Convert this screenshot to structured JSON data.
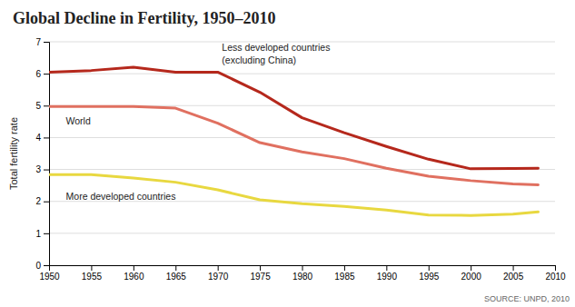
{
  "chart_data": {
    "type": "line",
    "title": "Global Decline in Fertility, 1950–2010",
    "ylabel": "Total fertility rate",
    "source": "SOURCE: UNPD, 2010",
    "x": [
      1950,
      1955,
      1960,
      1965,
      1970,
      1975,
      1980,
      1985,
      1990,
      1995,
      2000,
      2005,
      2008
    ],
    "series": [
      {
        "color": "#b5281c",
        "values": [
          6.05,
          6.1,
          6.2,
          6.05,
          6.05,
          5.42,
          4.62,
          4.15,
          3.72,
          3.32,
          3.02,
          3.03,
          3.04
        ]
      },
      {
        "color": "#e07060",
        "values": [
          4.97,
          4.97,
          4.97,
          4.92,
          4.45,
          3.84,
          3.55,
          3.34,
          3.04,
          2.79,
          2.65,
          2.55,
          2.52
        ]
      },
      {
        "color": "#e8d840",
        "values": [
          2.84,
          2.84,
          2.73,
          2.6,
          2.36,
          2.05,
          1.93,
          1.84,
          1.73,
          1.57,
          1.56,
          1.6,
          1.67
        ]
      }
    ],
    "annotations": [
      {
        "text": "Less developed countries\n(excluding China)",
        "x": 1970.5,
        "y": 6.62
      },
      {
        "text": "World",
        "x": 1952.0,
        "y": 4.52
      },
      {
        "text": "More developed countries",
        "x": 1952.0,
        "y": 2.16
      }
    ],
    "xlim": [
      1950,
      2010
    ],
    "ylim": [
      0,
      7
    ],
    "xticks": [
      1950,
      1955,
      1960,
      1965,
      1970,
      1975,
      1980,
      1985,
      1990,
      1995,
      2000,
      2005,
      2010
    ],
    "yticks": [
      0,
      1,
      2,
      3,
      4,
      5,
      6,
      7
    ],
    "grid": true
  }
}
